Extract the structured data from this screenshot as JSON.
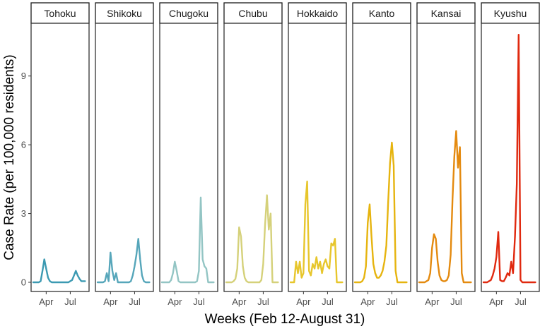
{
  "chart_data": {
    "type": "line",
    "xlabel": "Weeks (Feb 12-August 31)",
    "ylabel": "Case Rate (per 100,000 residents)",
    "x_ticks": [
      "Apr",
      "Jul"
    ],
    "y_ticks": [
      0,
      3,
      6,
      9
    ],
    "ylim": [
      -0.4,
      11.3
    ],
    "x_range_weeks": [
      0,
      29
    ],
    "x_tick_weeks": [
      7,
      20
    ],
    "grid": false,
    "legend": "none",
    "panels": [
      {
        "name": "Tohoku",
        "color": "#3c9ab2",
        "values": [
          0,
          0,
          0,
          0,
          0.05,
          0.5,
          1.0,
          0.6,
          0.2,
          0.05,
          0,
          0,
          0,
          0,
          0,
          0,
          0,
          0,
          0,
          0,
          0.05,
          0.1,
          0.3,
          0.5,
          0.3,
          0.15,
          0.05,
          0.05,
          0.05
        ]
      },
      {
        "name": "Shikoku",
        "color": "#56a6ba",
        "values": [
          0,
          0,
          0,
          0,
          0.05,
          0.4,
          0.05,
          1.3,
          0.5,
          0.1,
          0.4,
          0,
          0,
          0,
          0,
          0,
          0,
          0,
          0.05,
          0.3,
          0.7,
          1.2,
          1.9,
          1.0,
          0.3,
          0.05,
          0,
          0,
          0
        ]
      },
      {
        "name": "Chugoku",
        "color": "#93c5c4",
        "values": [
          0,
          0,
          0,
          0,
          0,
          0.1,
          0.4,
          0.9,
          0.5,
          0.05,
          0,
          0,
          0,
          0,
          0,
          0,
          0,
          0,
          0,
          0.05,
          0.5,
          3.7,
          1.0,
          0.7,
          0.6,
          0,
          0,
          0,
          0
        ]
      },
      {
        "name": "Chubu",
        "color": "#d5d17a",
        "values": [
          0,
          0,
          0,
          0,
          0.05,
          0.15,
          0.6,
          2.4,
          2.0,
          0.7,
          0.2,
          0.05,
          0,
          0,
          0,
          0,
          0,
          0,
          0,
          0.1,
          0.8,
          2.5,
          3.8,
          2.3,
          3.0,
          0,
          0,
          0,
          0
        ]
      },
      {
        "name": "Hokkaido",
        "color": "#e7c62c",
        "values": [
          0,
          0,
          0,
          0.9,
          0.4,
          0.9,
          0.2,
          0.4,
          3.4,
          4.4,
          0.5,
          0.3,
          0.8,
          0.6,
          1.1,
          0.6,
          0.9,
          0.4,
          0.8,
          1.0,
          0.7,
          0.6,
          1.7,
          1.6,
          1.9,
          0,
          0,
          0,
          0
        ]
      },
      {
        "name": "Kanto",
        "color": "#e6b40f",
        "values": [
          0,
          0,
          0,
          0,
          0.05,
          0.2,
          0.7,
          2.6,
          3.4,
          2.0,
          0.8,
          0.4,
          0.2,
          0.2,
          0.3,
          0.5,
          0.9,
          1.6,
          3.5,
          5.2,
          6.1,
          5.1,
          0.5,
          0,
          0,
          0,
          0,
          0,
          0
        ]
      },
      {
        "name": "Kansai",
        "color": "#e48a0f",
        "values": [
          0,
          0,
          0,
          0,
          0.05,
          0.1,
          0.4,
          1.5,
          2.1,
          1.9,
          0.9,
          0.3,
          0.1,
          0.05,
          0.05,
          0.1,
          0.3,
          1.2,
          3.6,
          5.5,
          6.6,
          5.0,
          5.9,
          0.4,
          0,
          0,
          0,
          0,
          0
        ]
      },
      {
        "name": "Kyushu",
        "color": "#e0290f",
        "values": [
          0,
          0,
          0,
          0.05,
          0.1,
          0.3,
          0.6,
          1.1,
          2.2,
          0.1,
          0.05,
          0.05,
          0.2,
          0.4,
          0.3,
          0.9,
          0.4,
          2.0,
          4.3,
          10.8,
          0.1,
          0,
          0,
          0,
          0,
          0,
          0,
          0,
          0
        ]
      }
    ]
  }
}
